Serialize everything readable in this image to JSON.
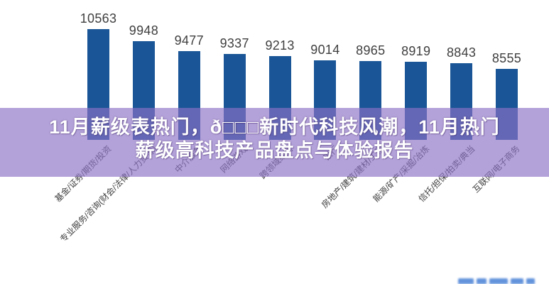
{
  "banner": {
    "line1": "11月薪级表热门，ð□□□新时代科技风潮，11月热门",
    "line2": "薪级高科技产品盘点与体验报告",
    "text_color": "#ffffff",
    "overlay_color": "rgba(139,112,197,0.66)"
  },
  "chart_data": {
    "type": "bar",
    "title": "",
    "categories": [
      "基金/证券/期货/投资",
      "专业服务/咨询(财会/法律/人力资源)",
      "中介服务",
      "网络游戏",
      "跨领域经营",
      "银行",
      "房地产/建筑/建材/工程",
      "能源/矿产/采掘/冶炼",
      "信托/担保/拍卖/典当",
      "互联网/电子商务"
    ],
    "values": [
      10563,
      9948,
      9477,
      9337,
      9213,
      9014,
      8965,
      8919,
      8843,
      8555
    ],
    "value_labels_shown": true,
    "bar_color": "#1a5697",
    "value_label_color": "#3f3f3f",
    "category_label_rotation_deg": 45,
    "ylim": [
      5000,
      10800
    ],
    "grid": false,
    "legend": false,
    "xlabel": "",
    "ylabel": ""
  }
}
